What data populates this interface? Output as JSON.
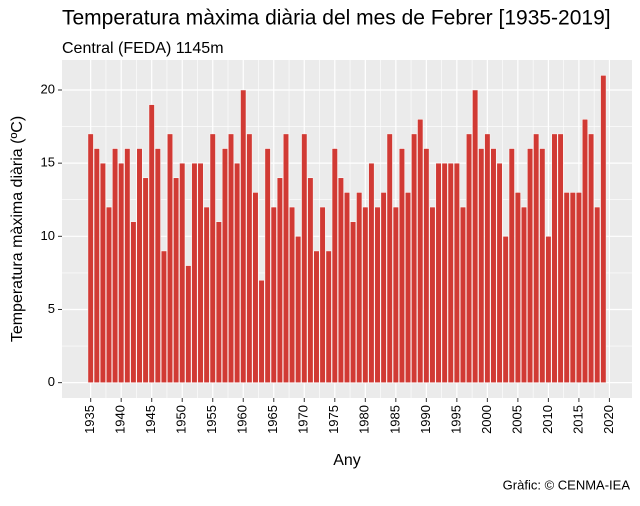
{
  "chart_data": {
    "type": "bar",
    "title": "Temperatura màxima diària del mes de Febrer [1935-2019]",
    "subtitle": "Central (FEDA) 1145m",
    "x_label": "Any",
    "y_label": "Temperatura màxima diària (ºC)",
    "caption": "Gràfic: © CENMA-IEA",
    "x": [
      1935,
      1936,
      1937,
      1938,
      1939,
      1940,
      1941,
      1942,
      1943,
      1944,
      1945,
      1946,
      1947,
      1948,
      1949,
      1950,
      1951,
      1952,
      1953,
      1954,
      1955,
      1956,
      1957,
      1958,
      1959,
      1960,
      1961,
      1962,
      1963,
      1964,
      1965,
      1966,
      1967,
      1968,
      1969,
      1970,
      1971,
      1972,
      1973,
      1974,
      1975,
      1976,
      1977,
      1978,
      1979,
      1980,
      1981,
      1982,
      1983,
      1984,
      1985,
      1986,
      1987,
      1988,
      1989,
      1990,
      1991,
      1992,
      1993,
      1994,
      1995,
      1996,
      1997,
      1998,
      1999,
      2000,
      2001,
      2002,
      2003,
      2004,
      2005,
      2006,
      2007,
      2008,
      2009,
      2010,
      2011,
      2012,
      2013,
      2014,
      2015,
      2016,
      2017,
      2018,
      2019
    ],
    "values": [
      17,
      16,
      15,
      12,
      16,
      15,
      16,
      11,
      16,
      14,
      19,
      16,
      9,
      17,
      14,
      15,
      8,
      15,
      15,
      12,
      17,
      11,
      16,
      17,
      15,
      20,
      17,
      13,
      7,
      16,
      12,
      14,
      17,
      12,
      10,
      17,
      14,
      9,
      12,
      9,
      16,
      14,
      13,
      11,
      13,
      12,
      15,
      12,
      13,
      17,
      12,
      16,
      13,
      17,
      18,
      16,
      12,
      15,
      15,
      15,
      15,
      12,
      17,
      20,
      16,
      17,
      16,
      15,
      10,
      16,
      13,
      12,
      16,
      17,
      16,
      10,
      17,
      17,
      13,
      13,
      13,
      18,
      17,
      12,
      21
    ],
    "color": "#d13a34",
    "xlim": [
      1930.3,
      2023.7
    ],
    "xticks": [
      1935,
      1940,
      1945,
      1950,
      1955,
      1960,
      1965,
      1970,
      1975,
      1980,
      1985,
      1990,
      1995,
      2000,
      2005,
      2010,
      2015,
      2020
    ],
    "ylim": [
      -1.05,
      22.05
    ],
    "yticks": [
      0,
      5,
      10,
      15,
      20
    ],
    "grid": true
  }
}
